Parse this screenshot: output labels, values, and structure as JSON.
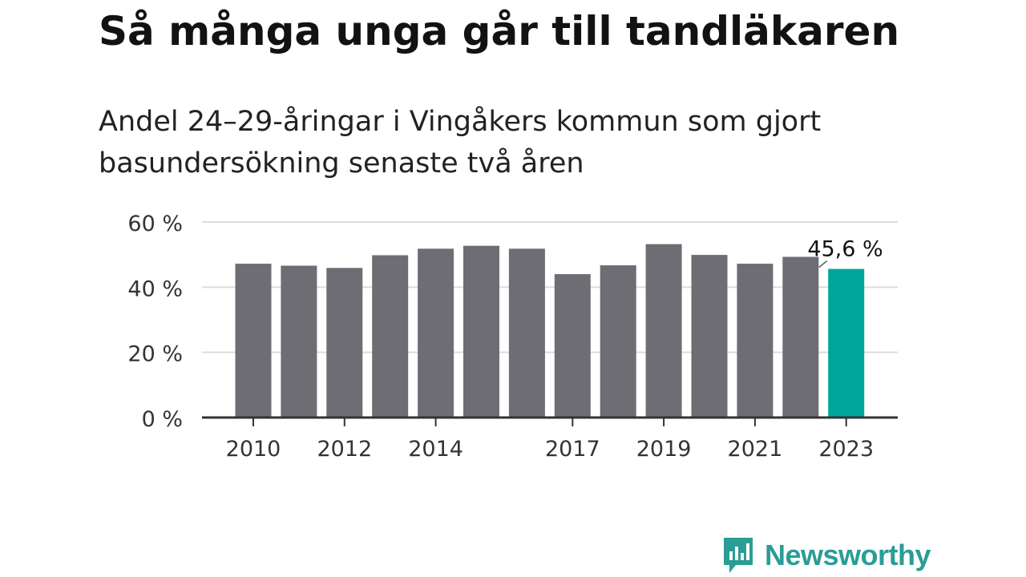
{
  "chart_data": {
    "type": "bar",
    "title": "Så många unga går till tandläkaren",
    "subtitle": "Andel 24–29-åringar i Vingåkers kommun som gjort basundersökning senaste två åren",
    "categories": [
      "2010",
      "2011",
      "2012",
      "2013",
      "2014",
      "2015",
      "2016",
      "2017",
      "2018",
      "2019",
      "2020",
      "2021",
      "2022",
      "2023"
    ],
    "values": [
      47.2,
      46.6,
      45.9,
      49.8,
      51.8,
      52.7,
      51.8,
      44.0,
      46.7,
      53.2,
      49.9,
      47.2,
      49.3,
      45.6
    ],
    "x_tick_labels": [
      "2010",
      "2012",
      "2014",
      "2017",
      "2019",
      "2021",
      "2023"
    ],
    "y_ticks": [
      0,
      20,
      40,
      60
    ],
    "y_tick_labels": [
      "0 %",
      "20 %",
      "40 %",
      "60 %"
    ],
    "ylim": [
      0,
      60
    ],
    "highlight_index": 13,
    "highlight_label": "45,6 %",
    "xlabel": "",
    "ylabel": "",
    "grid": true,
    "colors": {
      "bar": "#6e6d74",
      "highlight": "#00a69a",
      "grid": "#dcdcdc",
      "axis": "#333333"
    }
  },
  "logo": {
    "text": "Newsworthy",
    "icon": "newsworthy-logo-icon",
    "color": "#2a9d95"
  }
}
